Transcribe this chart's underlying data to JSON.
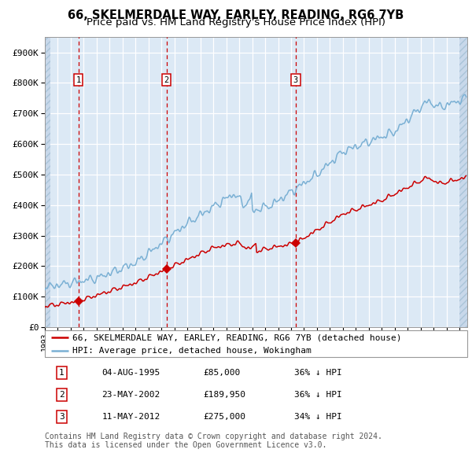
{
  "title1": "66, SKELMERDALE WAY, EARLEY, READING, RG6 7YB",
  "title2": "Price paid vs. HM Land Registry's House Price Index (HPI)",
  "bg_color": "#dce9f5",
  "plot_bg_color": "#dce9f5",
  "hatch_color": "#c8d8ea",
  "grid_color": "#ffffff",
  "red_line_color": "#cc0000",
  "blue_line_color": "#7ab0d4",
  "sale_color": "#cc0000",
  "vline_color": "#cc0000",
  "box_color": "#cc0000",
  "ylim": [
    0,
    950000
  ],
  "yticks": [
    0,
    100000,
    200000,
    300000,
    400000,
    500000,
    600000,
    700000,
    800000,
    900000
  ],
  "ytick_labels": [
    "£0",
    "£100K",
    "£200K",
    "£300K",
    "£400K",
    "£500K",
    "£600K",
    "£700K",
    "£800K",
    "£900K"
  ],
  "xlim_start": 1993.0,
  "xlim_end": 2025.6,
  "hatch_end": 2025.0,
  "sale_dates": [
    1995.585,
    2002.388,
    2012.358
  ],
  "sale_prices": [
    85000,
    189950,
    275000
  ],
  "sale_labels": [
    "1",
    "2",
    "3"
  ],
  "legend_red": "66, SKELMERDALE WAY, EARLEY, READING, RG6 7YB (detached house)",
  "legend_blue": "HPI: Average price, detached house, Wokingham",
  "table_rows": [
    [
      "1",
      "04-AUG-1995",
      "£85,000",
      "36% ↓ HPI"
    ],
    [
      "2",
      "23-MAY-2002",
      "£189,950",
      "36% ↓ HPI"
    ],
    [
      "3",
      "11-MAY-2012",
      "£275,000",
      "34% ↓ HPI"
    ]
  ],
  "footnote": "Contains HM Land Registry data © Crown copyright and database right 2024.\nThis data is licensed under the Open Government Licence v3.0.",
  "title_fontsize": 10.5,
  "subtitle_fontsize": 9.5,
  "tick_fontsize": 8,
  "legend_fontsize": 8,
  "table_fontsize": 8,
  "footnote_fontsize": 7
}
